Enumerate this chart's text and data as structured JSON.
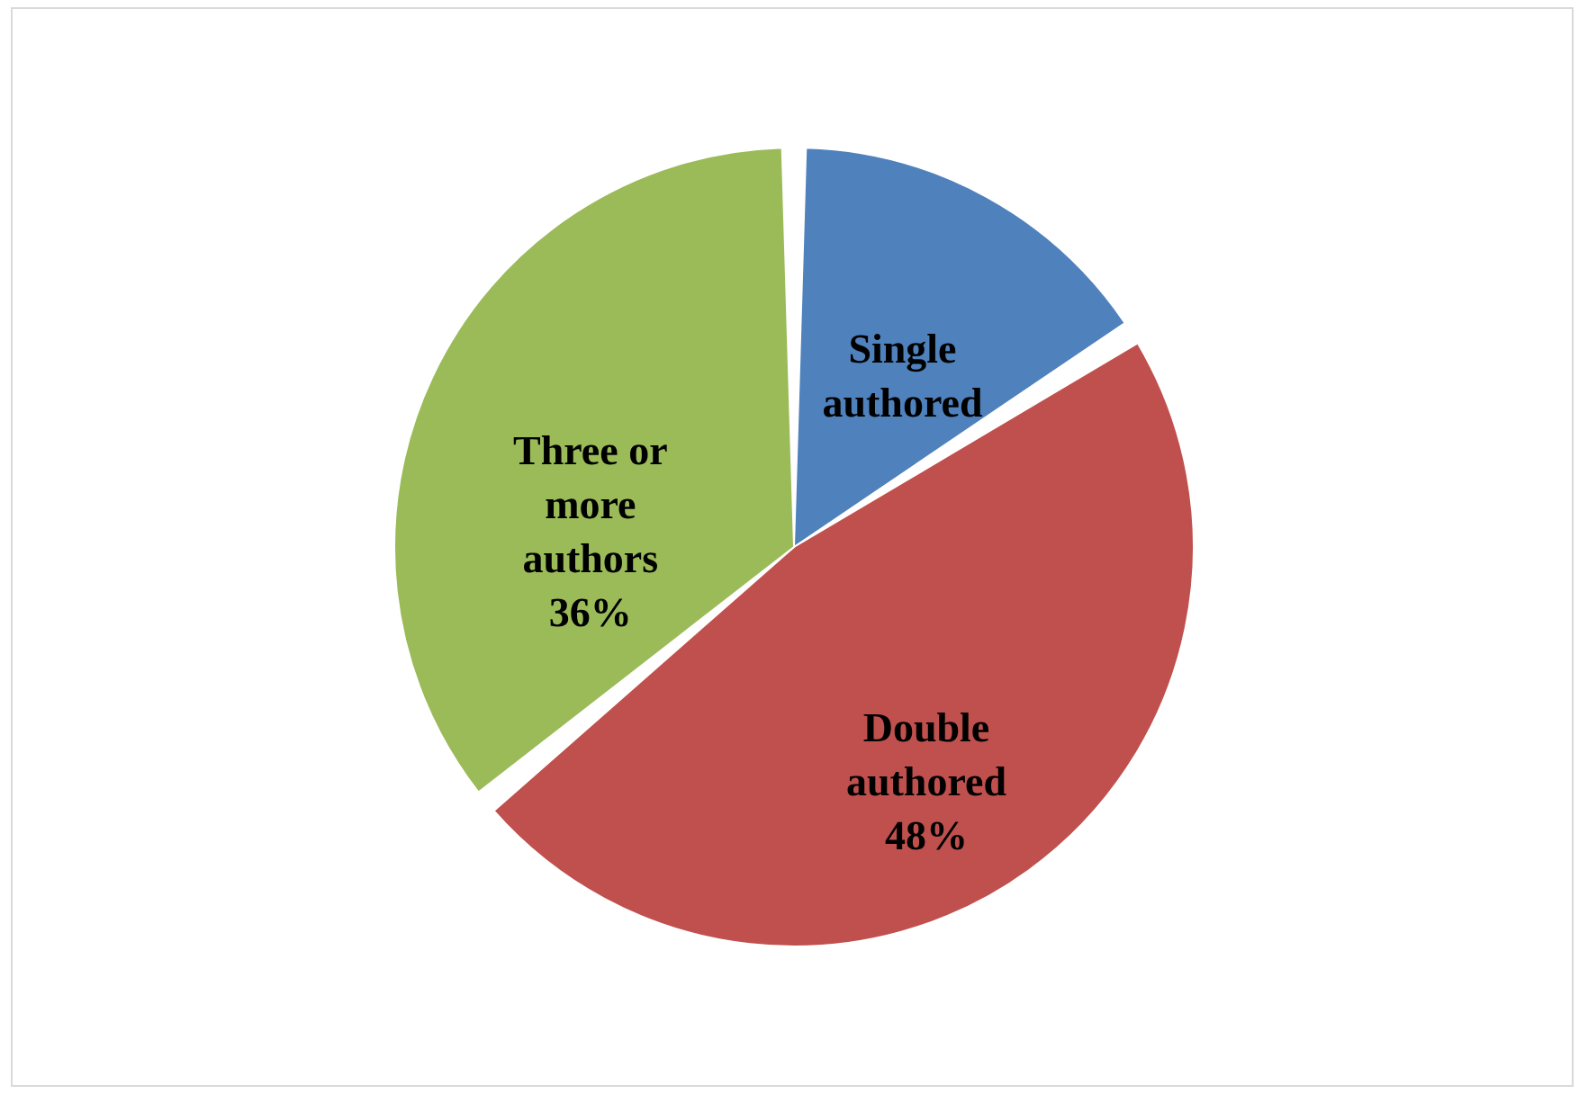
{
  "chart_data": {
    "type": "pie",
    "categories": [
      "Single authored",
      "Double authored",
      "Three or more authors"
    ],
    "values": [
      16,
      48,
      36
    ],
    "colors": [
      "#4f81bd",
      "#c0504d",
      "#9bbb59"
    ],
    "value_labels": [
      null,
      "48%",
      "36%"
    ],
    "legend": false
  }
}
